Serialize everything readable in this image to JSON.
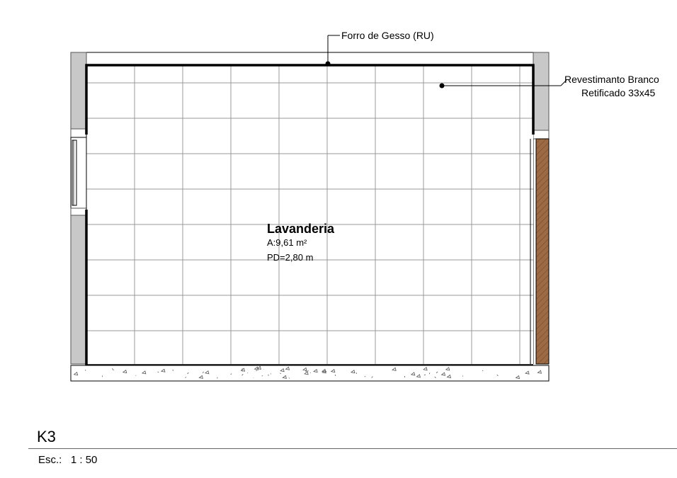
{
  "room": {
    "name": "Lavanderia",
    "area": "A:9,61 m²",
    "ceiling_height": "PD=2,80 m"
  },
  "annotations": {
    "ceiling": "Forro de Gesso (RU)",
    "wall_line1": "Revestimanto Branco",
    "wall_line2": "Retificado 33x45"
  },
  "view": {
    "id": "K3",
    "scale_label": "Esc.:",
    "scale_value": "1 : 50"
  },
  "colors": {
    "wall_gray": "#c8c8c8",
    "wood": "#9c6a44",
    "tile_line": "#9a9a9a"
  }
}
